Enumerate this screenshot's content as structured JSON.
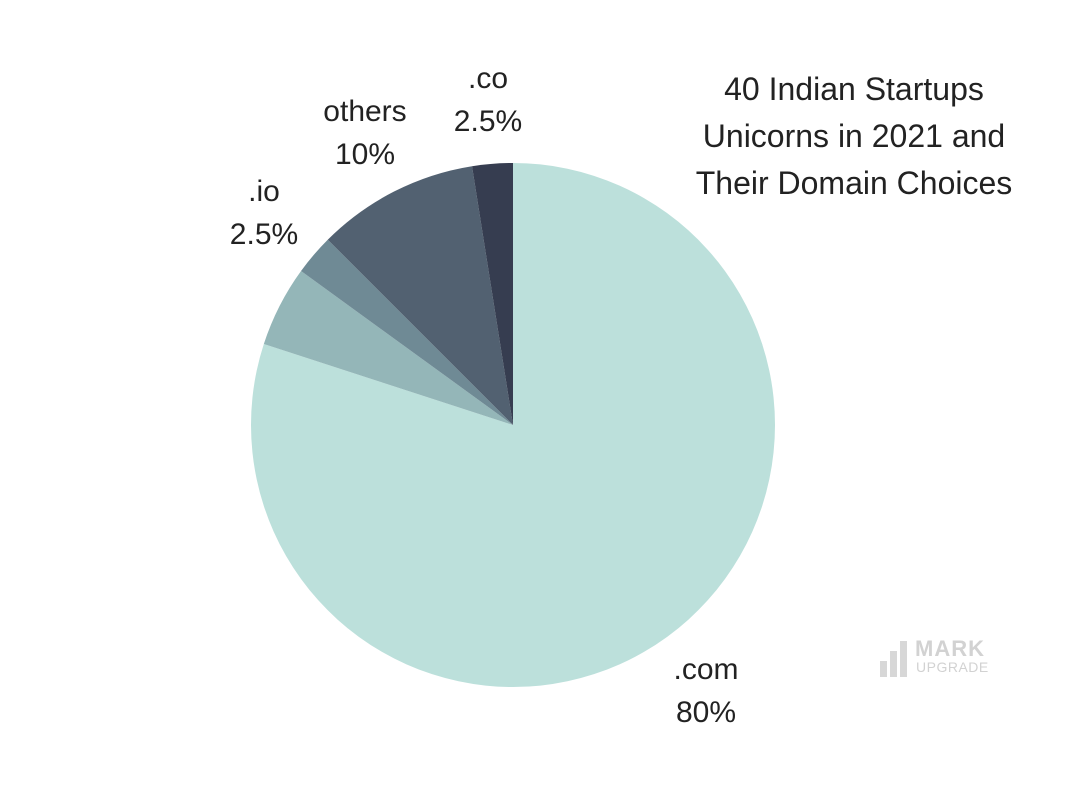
{
  "chart_data": {
    "type": "pie",
    "title_lines": [
      "40 Indian Startups",
      "Unicorns in 2021 and",
      "Their Domain Choices"
    ],
    "slices": [
      {
        "label": ".com",
        "value": 80,
        "value_label": "80%",
        "color": "#bce0db"
      },
      {
        "label": "",
        "value": 5,
        "value_label": "",
        "color": "#94b6b8"
      },
      {
        "label": ".io",
        "value": 2.5,
        "value_label": "2.5%",
        "color": "#6f8a95"
      },
      {
        "label": "others",
        "value": 10,
        "value_label": "10%",
        "color": "#526171"
      },
      {
        "label": ".co",
        "value": 2.5,
        "value_label": "2.5%",
        "color": "#363d50"
      }
    ],
    "start_angle": "12 o'clock",
    "direction": "clockwise"
  },
  "logo": {
    "word1": "MARK",
    "word2": "UPGRADE"
  }
}
